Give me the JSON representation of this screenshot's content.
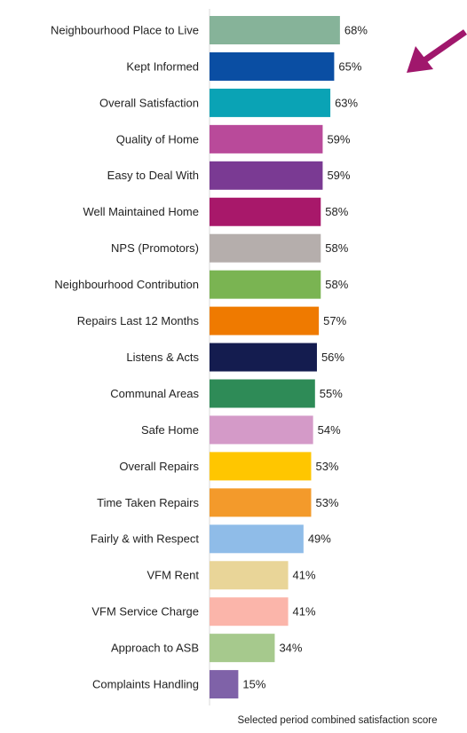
{
  "chart_data": {
    "type": "bar",
    "orientation": "horizontal",
    "categories": [
      "Neighbourhood Place to Live",
      "Kept Informed",
      "Overall Satisfaction",
      "Quality of Home",
      "Easy to Deal With",
      "Well Maintained Home",
      "NPS (Promotors)",
      "Neighbourhood Contribution",
      "Repairs Last 12 Months",
      "Listens & Acts",
      "Communal Areas",
      "Safe Home",
      "Overall Repairs",
      "Time Taken Repairs",
      "Fairly & with Respect",
      "VFM Rent",
      "VFM Service Charge",
      "Approach to ASB",
      "Complaints Handling"
    ],
    "values": [
      68,
      65,
      63,
      59,
      59,
      58,
      58,
      58,
      57,
      56,
      55,
      54,
      53,
      53,
      49,
      41,
      41,
      34,
      15
    ],
    "value_labels": [
      "68%",
      "65%",
      "63%",
      "59%",
      "59%",
      "58%",
      "58%",
      "58%",
      "57%",
      "56%",
      "55%",
      "54%",
      "53%",
      "53%",
      "49%",
      "41%",
      "41%",
      "34%",
      "15%"
    ],
    "colors": [
      "#86b399",
      "#0a4ea3",
      "#0aa3b5",
      "#b94a9a",
      "#7a3a93",
      "#a8186a",
      "#b5aeac",
      "#7ab452",
      "#ef7a00",
      "#141c4f",
      "#2e8b57",
      "#d49ac8",
      "#ffc600",
      "#f39a2b",
      "#8fbce8",
      "#e9d598",
      "#fbb5aa",
      "#a6c98d",
      "#7f62a8"
    ],
    "xlabel": "Selected period combined satisfaction score",
    "xlim": [
      0,
      100
    ]
  }
}
